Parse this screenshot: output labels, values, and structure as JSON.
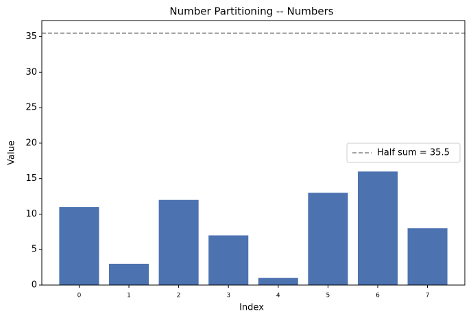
{
  "chart_data": {
    "type": "bar",
    "title": "Number Partitioning -- Numbers",
    "x_label": "Index",
    "y_label": "Value",
    "categories": [
      "0",
      "1",
      "2",
      "3",
      "4",
      "5",
      "6",
      "7"
    ],
    "values": [
      11,
      3,
      12,
      7,
      1,
      13,
      16,
      8
    ],
    "color": "#4c72b0",
    "ylim": [
      0,
      37.275
    ],
    "yticks": [
      0,
      5,
      10,
      15,
      20,
      25,
      30,
      35
    ],
    "reference_line": {
      "value": 35.5,
      "label": "Half sum = 35.5",
      "color": "#808080",
      "style": "dashed"
    },
    "legend": "center right"
  }
}
